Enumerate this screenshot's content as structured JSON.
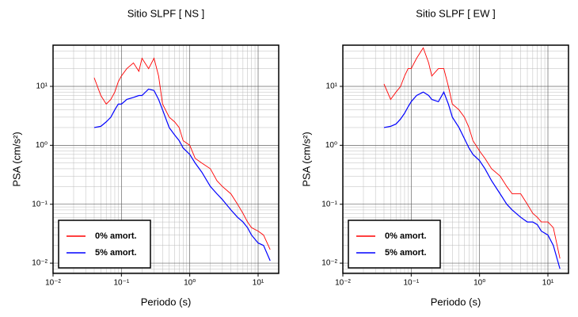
{
  "chart_data": [
    {
      "type": "line",
      "title": "Sitio SLPF [ NS ]",
      "xlabel": "Periodo (s)",
      "ylabel": "PSA (cm/s²)",
      "log_x": true,
      "log_y": true,
      "grid": true,
      "minor_grid": true,
      "legend": "lower left",
      "xlim": [
        0.01,
        20
      ],
      "ylim": [
        0.0067,
        50
      ],
      "xticks": [
        {
          "value": 0.01,
          "label": "10⁻²"
        },
        {
          "value": 0.1,
          "label": "10⁻¹"
        },
        {
          "value": 1,
          "label": "10⁰"
        },
        {
          "value": 10,
          "label": "10¹"
        }
      ],
      "yticks": [
        {
          "value": 0.01,
          "label": "10⁻²"
        },
        {
          "value": 0.1,
          "label": "10⁻¹"
        },
        {
          "value": 1,
          "label": "10⁰"
        },
        {
          "value": 10,
          "label": "10¹"
        }
      ],
      "x": [
        0.04,
        0.05,
        0.06,
        0.07,
        0.08,
        0.09,
        0.1,
        0.12,
        0.15,
        0.18,
        0.2,
        0.25,
        0.3,
        0.35,
        0.4,
        0.5,
        0.6,
        0.7,
        0.8,
        1,
        1.2,
        1.5,
        2,
        2.5,
        3,
        4,
        5,
        6,
        7,
        8,
        10,
        12,
        15
      ],
      "series": [
        {
          "name": "0% amort.",
          "color": "#ff0000",
          "values": [
            14,
            7,
            5,
            6,
            8,
            12,
            15,
            20,
            25,
            18,
            30,
            20,
            30,
            15,
            5,
            3,
            2.5,
            2,
            1.2,
            1,
            0.6,
            0.5,
            0.4,
            0.25,
            0.2,
            0.15,
            0.1,
            0.07,
            0.05,
            0.04,
            0.035,
            0.03,
            0.017
          ]
        },
        {
          "name": "5% amort.",
          "color": "#0000ff",
          "values": [
            2.0,
            2.1,
            2.5,
            3,
            4,
            5,
            5,
            6,
            6.5,
            7,
            7,
            9,
            8.5,
            6,
            4,
            2,
            1.5,
            1.2,
            0.9,
            0.7,
            0.5,
            0.35,
            0.2,
            0.15,
            0.12,
            0.08,
            0.06,
            0.05,
            0.04,
            0.03,
            0.022,
            0.02,
            0.011
          ]
        }
      ]
    },
    {
      "type": "line",
      "title": "Sitio SLPF [ EW ]",
      "xlabel": "Periodo (s)",
      "ylabel": "PSA (cm/s²)",
      "log_x": true,
      "log_y": true,
      "grid": true,
      "minor_grid": true,
      "legend": "lower left",
      "xlim": [
        0.01,
        20
      ],
      "ylim": [
        0.0067,
        50
      ],
      "xticks": [
        {
          "value": 0.01,
          "label": "10⁻²"
        },
        {
          "value": 0.1,
          "label": "10⁻¹"
        },
        {
          "value": 1,
          "label": "10⁰"
        },
        {
          "value": 10,
          "label": "10¹"
        }
      ],
      "yticks": [
        {
          "value": 0.01,
          "label": "10⁻²"
        },
        {
          "value": 0.1,
          "label": "10⁻¹"
        },
        {
          "value": 1,
          "label": "10⁰"
        },
        {
          "value": 10,
          "label": "10¹"
        }
      ],
      "x": [
        0.04,
        0.05,
        0.06,
        0.07,
        0.08,
        0.09,
        0.1,
        0.12,
        0.15,
        0.18,
        0.2,
        0.25,
        0.3,
        0.35,
        0.4,
        0.5,
        0.6,
        0.7,
        0.8,
        1,
        1.2,
        1.5,
        2,
        2.5,
        3,
        4,
        5,
        6,
        7,
        8,
        10,
        12,
        15
      ],
      "series": [
        {
          "name": "0% amort.",
          "color": "#ff0000",
          "values": [
            11,
            6,
            8,
            10,
            15,
            20,
            20,
            30,
            45,
            25,
            15,
            20,
            20,
            10,
            5,
            4,
            3,
            2,
            1.2,
            0.8,
            0.6,
            0.4,
            0.3,
            0.2,
            0.15,
            0.15,
            0.1,
            0.07,
            0.06,
            0.05,
            0.05,
            0.04,
            0.012
          ]
        },
        {
          "name": "5% amort.",
          "color": "#0000ff",
          "values": [
            2.0,
            2.1,
            2.3,
            2.8,
            3.5,
            4.5,
            5.5,
            7,
            8,
            7,
            6,
            5.5,
            8,
            5,
            3,
            2,
            1.3,
            0.9,
            0.7,
            0.55,
            0.4,
            0.25,
            0.15,
            0.1,
            0.08,
            0.06,
            0.05,
            0.05,
            0.045,
            0.035,
            0.03,
            0.02,
            0.008
          ]
        }
      ]
    }
  ]
}
